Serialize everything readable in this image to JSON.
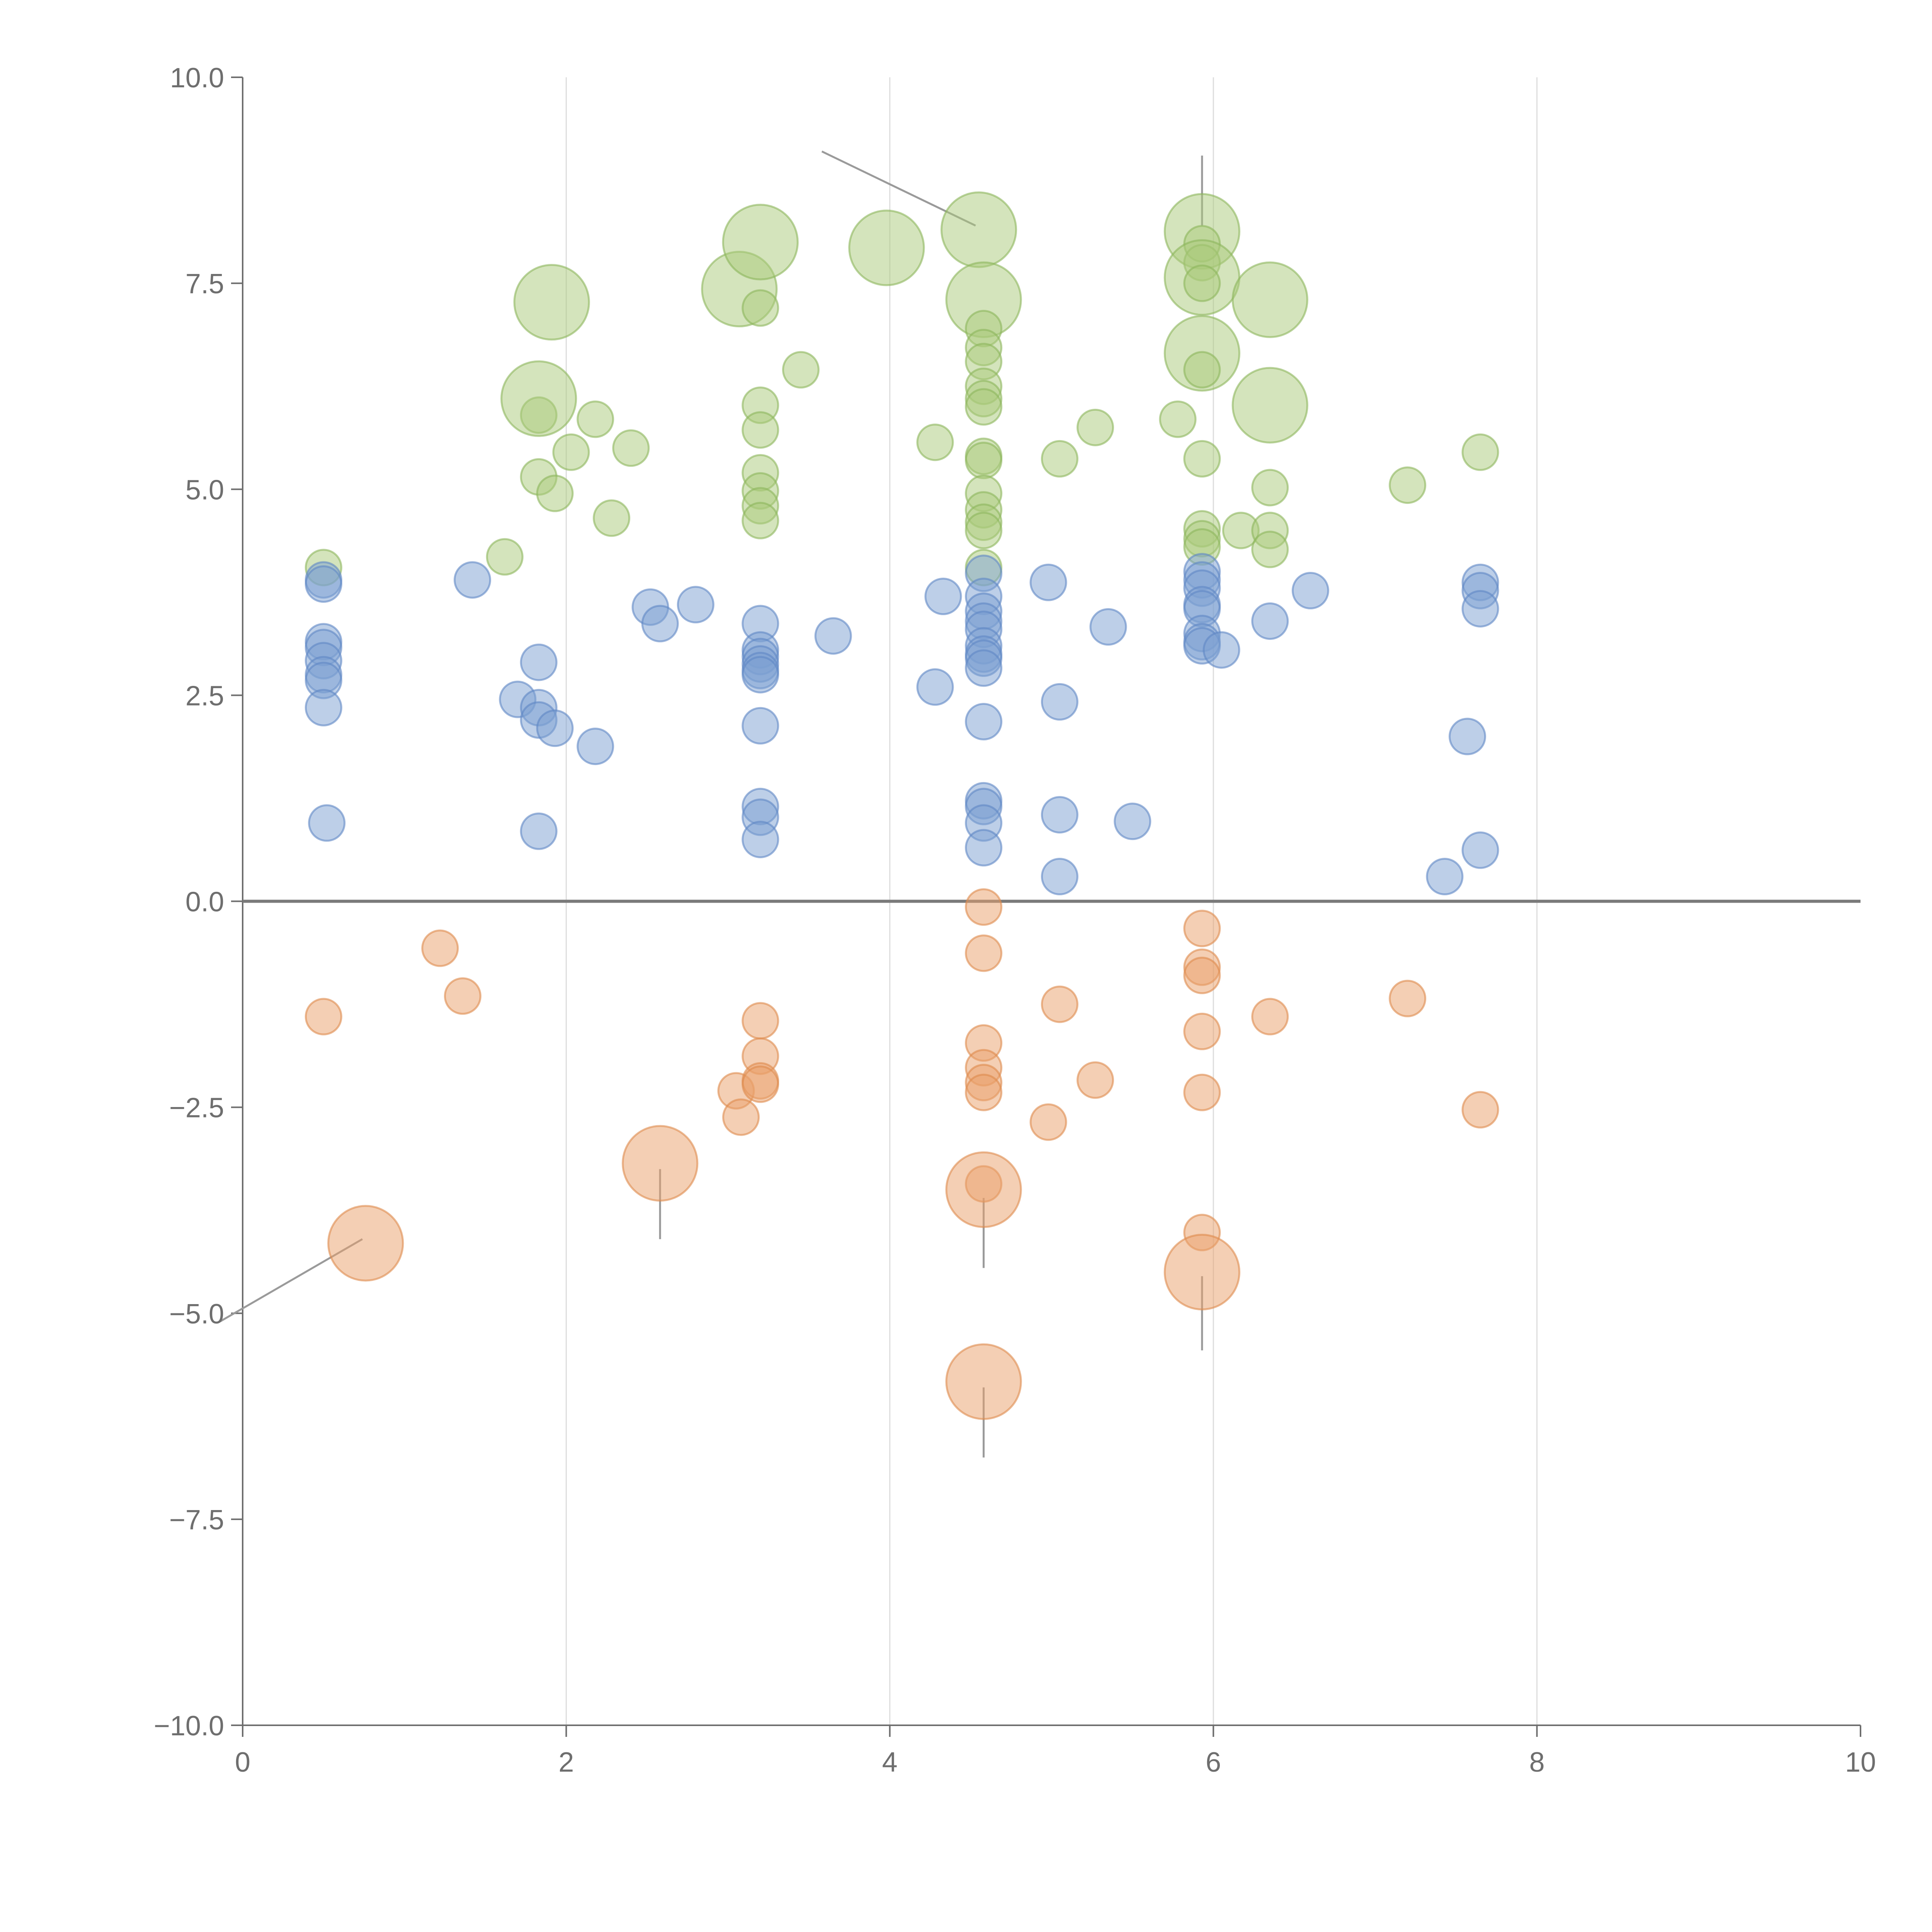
{
  "colors": {
    "green_fill": "#a9c97a",
    "green_stroke": "#8cb55c",
    "blue_fill": "#7b9fd2",
    "blue_stroke": "#5f87c4",
    "orange_fill": "#e9a06a",
    "orange_stroke": "#dd8a4d",
    "axis": "#6e6e6e",
    "grid": "#dddddd"
  },
  "chart_data": {
    "type": "scatter",
    "bubble": true,
    "title": "",
    "xlabel": "",
    "ylabel": "",
    "xlim": [
      0,
      10
    ],
    "ylim": [
      -10,
      10
    ],
    "x_ticks": [
      "0",
      "2",
      "4",
      "6",
      "8",
      "10"
    ],
    "x_tick_values": [
      0,
      2,
      4,
      6,
      8,
      10
    ],
    "y_ticks": [
      "10.0",
      "7.5",
      "5.0",
      "2.5",
      "0.0",
      "−2.5",
      "−5.0",
      "−7.5",
      "−10.0"
    ],
    "y_tick_values": [
      10,
      7.5,
      5,
      2.5,
      0,
      -2.5,
      -5,
      -7.5,
      -10
    ],
    "vertical_grid": true,
    "zero_line": true,
    "series": [
      {
        "name": "green",
        "color": "green",
        "points": [
          {
            "x": 0.5,
            "y": 4.05,
            "r": 1
          },
          {
            "x": 1.62,
            "y": 4.18,
            "r": 1
          },
          {
            "x": 1.83,
            "y": 5.15,
            "r": 1
          },
          {
            "x": 1.83,
            "y": 5.9,
            "r": 1
          },
          {
            "x": 1.83,
            "y": 6.1,
            "r": 2.1
          },
          {
            "x": 1.93,
            "y": 4.95,
            "r": 1
          },
          {
            "x": 2.03,
            "y": 5.45,
            "r": 1
          },
          {
            "x": 2.18,
            "y": 5.85,
            "r": 1
          },
          {
            "x": 2.28,
            "y": 4.65,
            "r": 1
          },
          {
            "x": 2.4,
            "y": 5.5,
            "r": 1
          },
          {
            "x": 1.91,
            "y": 7.27,
            "r": 2.1
          },
          {
            "x": 3.07,
            "y": 7.43,
            "r": 2.1
          },
          {
            "x": 3.2,
            "y": 8.0,
            "r": 2.1
          },
          {
            "x": 3.2,
            "y": 7.2,
            "r": 1
          },
          {
            "x": 3.2,
            "y": 6.02,
            "r": 1
          },
          {
            "x": 3.2,
            "y": 5.72,
            "r": 1
          },
          {
            "x": 3.2,
            "y": 5.2,
            "r": 1
          },
          {
            "x": 3.2,
            "y": 4.98,
            "r": 1
          },
          {
            "x": 3.2,
            "y": 4.8,
            "r": 1
          },
          {
            "x": 3.2,
            "y": 4.62,
            "r": 1
          },
          {
            "x": 3.45,
            "y": 6.45,
            "r": 1
          },
          {
            "x": 3.98,
            "y": 7.93,
            "r": 2.1
          },
          {
            "x": 4.28,
            "y": 5.57,
            "r": 1
          },
          {
            "x": 4.55,
            "y": 8.15,
            "r": 2.1
          },
          {
            "x": 4.58,
            "y": 7.3,
            "r": 2.1
          },
          {
            "x": 4.58,
            "y": 6.95,
            "r": 1
          },
          {
            "x": 4.58,
            "y": 6.72,
            "r": 1
          },
          {
            "x": 4.58,
            "y": 6.55,
            "r": 1
          },
          {
            "x": 4.58,
            "y": 6.25,
            "r": 1
          },
          {
            "x": 4.58,
            "y": 6.1,
            "r": 1
          },
          {
            "x": 4.58,
            "y": 6.0,
            "r": 1
          },
          {
            "x": 4.58,
            "y": 5.4,
            "r": 1
          },
          {
            "x": 4.58,
            "y": 5.35,
            "r": 1
          },
          {
            "x": 4.58,
            "y": 4.95,
            "r": 1
          },
          {
            "x": 4.58,
            "y": 4.75,
            "r": 1
          },
          {
            "x": 4.58,
            "y": 4.6,
            "r": 1
          },
          {
            "x": 4.58,
            "y": 4.5,
            "r": 1
          },
          {
            "x": 4.58,
            "y": 4.05,
            "r": 1
          },
          {
            "x": 5.05,
            "y": 5.37,
            "r": 1
          },
          {
            "x": 5.27,
            "y": 5.75,
            "r": 1
          },
          {
            "x": 5.78,
            "y": 5.85,
            "r": 1
          },
          {
            "x": 5.93,
            "y": 8.13,
            "r": 2.1
          },
          {
            "x": 5.93,
            "y": 7.98,
            "r": 1
          },
          {
            "x": 5.93,
            "y": 7.75,
            "r": 1
          },
          {
            "x": 5.93,
            "y": 7.57,
            "r": 2.1
          },
          {
            "x": 5.93,
            "y": 7.5,
            "r": 1
          },
          {
            "x": 5.93,
            "y": 6.65,
            "r": 2.1
          },
          {
            "x": 5.93,
            "y": 6.45,
            "r": 1
          },
          {
            "x": 5.93,
            "y": 5.37,
            "r": 1
          },
          {
            "x": 5.93,
            "y": 4.52,
            "r": 1
          },
          {
            "x": 5.93,
            "y": 4.4,
            "r": 1
          },
          {
            "x": 5.93,
            "y": 4.3,
            "r": 1
          },
          {
            "x": 6.17,
            "y": 4.5,
            "r": 1
          },
          {
            "x": 6.35,
            "y": 7.3,
            "r": 2.1
          },
          {
            "x": 6.35,
            "y": 6.02,
            "r": 2.1
          },
          {
            "x": 6.35,
            "y": 5.02,
            "r": 1
          },
          {
            "x": 6.35,
            "y": 4.5,
            "r": 1
          },
          {
            "x": 6.35,
            "y": 4.27,
            "r": 1
          },
          {
            "x": 7.2,
            "y": 5.05,
            "r": 1
          },
          {
            "x": 7.65,
            "y": 5.45,
            "r": 1
          }
        ]
      },
      {
        "name": "blue",
        "color": "blue",
        "points": [
          {
            "x": 0.5,
            "y": 3.9,
            "r": 1
          },
          {
            "x": 0.5,
            "y": 3.85,
            "r": 1
          },
          {
            "x": 0.5,
            "y": 3.15,
            "r": 1
          },
          {
            "x": 0.5,
            "y": 3.08,
            "r": 1
          },
          {
            "x": 0.5,
            "y": 2.92,
            "r": 1
          },
          {
            "x": 0.5,
            "y": 2.75,
            "r": 1
          },
          {
            "x": 0.5,
            "y": 2.68,
            "r": 1
          },
          {
            "x": 0.5,
            "y": 2.35,
            "r": 1
          },
          {
            "x": 0.52,
            "y": 0.95,
            "r": 1
          },
          {
            "x": 1.42,
            "y": 3.9,
            "r": 1
          },
          {
            "x": 1.7,
            "y": 2.45,
            "r": 1
          },
          {
            "x": 1.83,
            "y": 2.9,
            "r": 1
          },
          {
            "x": 1.83,
            "y": 2.35,
            "r": 1
          },
          {
            "x": 1.83,
            "y": 2.2,
            "r": 1
          },
          {
            "x": 1.93,
            "y": 2.1,
            "r": 1
          },
          {
            "x": 2.18,
            "y": 1.88,
            "r": 1
          },
          {
            "x": 1.83,
            "y": 0.85,
            "r": 1
          },
          {
            "x": 2.52,
            "y": 3.57,
            "r": 1
          },
          {
            "x": 2.58,
            "y": 3.37,
            "r": 1
          },
          {
            "x": 2.8,
            "y": 3.6,
            "r": 1
          },
          {
            "x": 3.2,
            "y": 3.37,
            "r": 1
          },
          {
            "x": 3.2,
            "y": 3.05,
            "r": 1
          },
          {
            "x": 3.2,
            "y": 2.97,
            "r": 1
          },
          {
            "x": 3.2,
            "y": 2.88,
            "r": 1
          },
          {
            "x": 3.2,
            "y": 2.8,
            "r": 1
          },
          {
            "x": 3.2,
            "y": 2.75,
            "r": 1
          },
          {
            "x": 3.2,
            "y": 2.13,
            "r": 1
          },
          {
            "x": 3.2,
            "y": 1.15,
            "r": 1
          },
          {
            "x": 3.2,
            "y": 1.02,
            "r": 1
          },
          {
            "x": 3.2,
            "y": 0.75,
            "r": 1
          },
          {
            "x": 3.65,
            "y": 3.22,
            "r": 1
          },
          {
            "x": 4.28,
            "y": 2.6,
            "r": 1
          },
          {
            "x": 4.33,
            "y": 3.7,
            "r": 1
          },
          {
            "x": 4.58,
            "y": 3.98,
            "r": 1
          },
          {
            "x": 4.58,
            "y": 3.7,
            "r": 1
          },
          {
            "x": 4.58,
            "y": 3.52,
            "r": 1
          },
          {
            "x": 4.58,
            "y": 3.4,
            "r": 1
          },
          {
            "x": 4.58,
            "y": 3.3,
            "r": 1
          },
          {
            "x": 4.58,
            "y": 3.1,
            "r": 1
          },
          {
            "x": 4.58,
            "y": 3.0,
            "r": 1
          },
          {
            "x": 4.58,
            "y": 2.95,
            "r": 1
          },
          {
            "x": 4.58,
            "y": 2.83,
            "r": 1
          },
          {
            "x": 4.58,
            "y": 2.18,
            "r": 1
          },
          {
            "x": 4.58,
            "y": 1.22,
            "r": 1
          },
          {
            "x": 4.58,
            "y": 1.15,
            "r": 1
          },
          {
            "x": 4.58,
            "y": 0.95,
            "r": 1
          },
          {
            "x": 4.58,
            "y": 0.65,
            "r": 1
          },
          {
            "x": 4.98,
            "y": 3.87,
            "r": 1
          },
          {
            "x": 5.05,
            "y": 2.42,
            "r": 1
          },
          {
            "x": 5.05,
            "y": 1.05,
            "r": 1
          },
          {
            "x": 5.05,
            "y": 0.3,
            "r": 1
          },
          {
            "x": 5.35,
            "y": 3.33,
            "r": 1
          },
          {
            "x": 5.5,
            "y": 0.97,
            "r": 1
          },
          {
            "x": 5.93,
            "y": 4.0,
            "r": 1
          },
          {
            "x": 5.93,
            "y": 3.9,
            "r": 1
          },
          {
            "x": 5.93,
            "y": 3.8,
            "r": 1
          },
          {
            "x": 5.93,
            "y": 3.6,
            "r": 1
          },
          {
            "x": 5.93,
            "y": 3.55,
            "r": 1
          },
          {
            "x": 5.93,
            "y": 3.25,
            "r": 1
          },
          {
            "x": 5.93,
            "y": 3.15,
            "r": 1
          },
          {
            "x": 5.93,
            "y": 3.1,
            "r": 1
          },
          {
            "x": 6.05,
            "y": 3.05,
            "r": 1
          },
          {
            "x": 6.35,
            "y": 3.4,
            "r": 1
          },
          {
            "x": 6.6,
            "y": 3.77,
            "r": 1
          },
          {
            "x": 7.43,
            "y": 0.3,
            "r": 1
          },
          {
            "x": 7.57,
            "y": 2.0,
            "r": 1
          },
          {
            "x": 7.65,
            "y": 3.87,
            "r": 1
          },
          {
            "x": 7.65,
            "y": 3.77,
            "r": 1
          },
          {
            "x": 7.65,
            "y": 3.55,
            "r": 1
          },
          {
            "x": 7.65,
            "y": 0.62,
            "r": 1
          }
        ]
      },
      {
        "name": "orange",
        "color": "orange",
        "points": [
          {
            "x": 0.5,
            "y": -1.4,
            "r": 1
          },
          {
            "x": 1.22,
            "y": -0.57,
            "r": 1
          },
          {
            "x": 1.36,
            "y": -1.15,
            "r": 1
          },
          {
            "x": 0.76,
            "y": -4.15,
            "r": 2.1
          },
          {
            "x": 2.58,
            "y": -3.18,
            "r": 2.1
          },
          {
            "x": 3.05,
            "y": -2.3,
            "r": 1
          },
          {
            "x": 3.08,
            "y": -2.62,
            "r": 1
          },
          {
            "x": 3.2,
            "y": -1.45,
            "r": 1
          },
          {
            "x": 3.2,
            "y": -1.88,
            "r": 1
          },
          {
            "x": 3.2,
            "y": -2.18,
            "r": 1
          },
          {
            "x": 3.2,
            "y": -2.22,
            "r": 1
          },
          {
            "x": 4.58,
            "y": -0.07,
            "r": 1
          },
          {
            "x": 4.58,
            "y": -0.63,
            "r": 1
          },
          {
            "x": 4.58,
            "y": -1.72,
            "r": 1
          },
          {
            "x": 4.58,
            "y": -2.02,
            "r": 1
          },
          {
            "x": 4.58,
            "y": -2.2,
            "r": 1
          },
          {
            "x": 4.58,
            "y": -2.32,
            "r": 1
          },
          {
            "x": 4.58,
            "y": -3.43,
            "r": 1
          },
          {
            "x": 4.58,
            "y": -3.5,
            "r": 2.1
          },
          {
            "x": 4.58,
            "y": -5.83,
            "r": 2.1
          },
          {
            "x": 4.98,
            "y": -2.68,
            "r": 1
          },
          {
            "x": 5.05,
            "y": -1.25,
            "r": 1
          },
          {
            "x": 5.27,
            "y": -2.17,
            "r": 1
          },
          {
            "x": 5.93,
            "y": -0.33,
            "r": 1
          },
          {
            "x": 5.93,
            "y": -0.8,
            "r": 1
          },
          {
            "x": 5.93,
            "y": -0.9,
            "r": 1
          },
          {
            "x": 5.93,
            "y": -1.58,
            "r": 1
          },
          {
            "x": 5.93,
            "y": -2.32,
            "r": 1
          },
          {
            "x": 5.93,
            "y": -4.02,
            "r": 1
          },
          {
            "x": 5.93,
            "y": -4.5,
            "r": 2.1
          },
          {
            "x": 6.35,
            "y": -1.4,
            "r": 1
          },
          {
            "x": 7.2,
            "y": -1.18,
            "r": 1
          },
          {
            "x": 7.65,
            "y": -2.53,
            "r": 1
          }
        ]
      }
    ],
    "annotation_leaders": [
      {
        "from": [
          0.74,
          -4.1
        ],
        "to": [
          -0.14,
          -5.1
        ]
      },
      {
        "from": [
          2.58,
          -3.25
        ],
        "to": [
          2.58,
          -4.1
        ]
      },
      {
        "from": [
          4.58,
          -3.6
        ],
        "to": [
          4.58,
          -4.45
        ]
      },
      {
        "from": [
          4.58,
          -5.9
        ],
        "to": [
          4.58,
          -6.75
        ]
      },
      {
        "from": [
          5.93,
          -4.55
        ],
        "to": [
          5.93,
          -5.45
        ]
      },
      {
        "from": [
          4.53,
          8.2
        ],
        "to": [
          3.58,
          9.1
        ]
      },
      {
        "from": [
          5.93,
          8.2
        ],
        "to": [
          5.93,
          9.05
        ]
      }
    ]
  }
}
